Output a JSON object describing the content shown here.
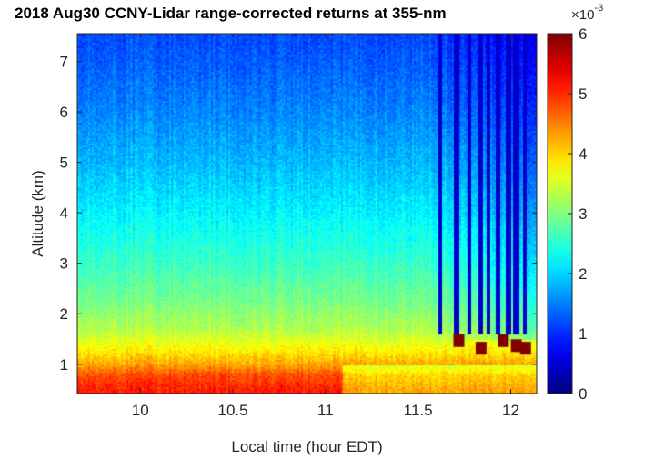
{
  "chart_data": {
    "type": "heatmap",
    "title": "2018 Aug30 CCNY-Lidar range-corrected returns at 355-nm",
    "xlabel": "Local time (hour EDT)",
    "ylabel": "Altitude (km)",
    "xlim": [
      9.66,
      12.14
    ],
    "ylim": [
      0.42,
      7.55
    ],
    "x_ticks": [
      "10",
      "10.5",
      "11",
      "11.5",
      "12"
    ],
    "x_tick_values": [
      10,
      10.5,
      11,
      11.5,
      12
    ],
    "y_ticks": [
      "1",
      "2",
      "3",
      "4",
      "5",
      "6",
      "7"
    ],
    "y_tick_values": [
      1,
      2,
      3,
      4,
      5,
      6,
      7
    ],
    "colorbar": {
      "colormap": "jet",
      "range": [
        0,
        6
      ],
      "ticks": [
        "0",
        "1",
        "2",
        "3",
        "4",
        "5",
        "6"
      ],
      "multiplier_base": "×10",
      "multiplier_exponent": "-3"
    },
    "grid": false,
    "profile_altitude_km": [
      0.5,
      0.8,
      1.0,
      1.3,
      1.7,
      2.2,
      3.0,
      4.0,
      5.0,
      6.0,
      7.0,
      7.5
    ],
    "profile_value_1e-3": [
      5.1,
      4.8,
      4.3,
      3.8,
      3.3,
      3.0,
      2.6,
      2.2,
      1.85,
      1.55,
      1.3,
      1.2
    ],
    "dark_columns_hours": [
      11.62,
      11.71,
      11.78,
      11.84,
      11.88,
      11.93,
      11.99,
      12.03,
      12.08
    ],
    "cloud_patches": [
      {
        "time_h": 11.72,
        "altitude_km": 1.45,
        "value_1e-3": 6
      },
      {
        "time_h": 11.84,
        "altitude_km": 1.3,
        "value_1e-3": 6
      },
      {
        "time_h": 11.96,
        "altitude_km": 1.45,
        "value_1e-3": 6
      },
      {
        "time_h": 12.03,
        "altitude_km": 1.35,
        "value_1e-3": 6
      },
      {
        "time_h": 12.08,
        "altitude_km": 1.3,
        "value_1e-3": 6
      }
    ]
  }
}
